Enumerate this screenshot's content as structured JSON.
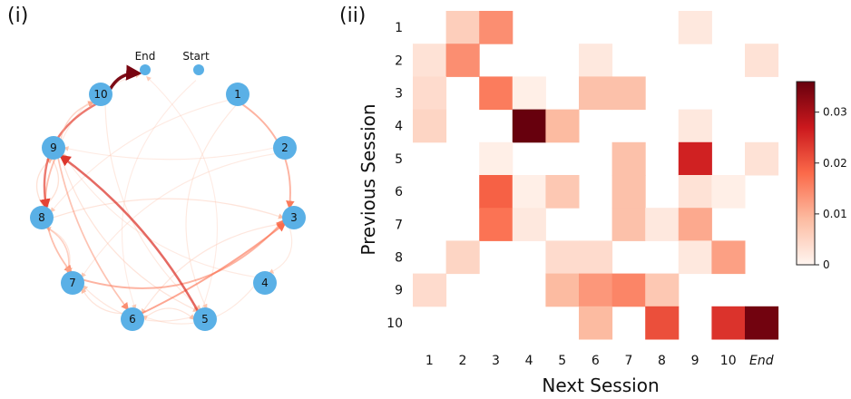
{
  "panels": {
    "left": "(i)",
    "right": "(ii)"
  },
  "graph": {
    "end_label": "End",
    "start_label": "Start",
    "nodes": [
      "1",
      "2",
      "3",
      "4",
      "5",
      "6",
      "7",
      "8",
      "9",
      "10"
    ]
  },
  "chart_data": {
    "type": "heatmap",
    "xlabel": "Next Session",
    "ylabel": "Previous Session",
    "x_categories": [
      "1",
      "2",
      "3",
      "4",
      "5",
      "6",
      "7",
      "8",
      "9",
      "10",
      "End"
    ],
    "y_categories": [
      "1",
      "2",
      "3",
      "4",
      "5",
      "6",
      "7",
      "8",
      "9",
      "10"
    ],
    "colorbar": {
      "min": 0,
      "max": 0.036,
      "ticks": [
        "0",
        "0.01",
        "0.02",
        "0.03"
      ],
      "tick_values": [
        0,
        0.01,
        0.02,
        0.03
      ]
    },
    "values": [
      [
        0,
        0.006,
        0.014,
        0,
        0,
        0,
        0,
        0,
        0.002,
        0,
        0
      ],
      [
        0.003,
        0.014,
        0,
        0,
        0,
        0.002,
        0,
        0,
        0,
        0,
        0.003
      ],
      [
        0.004,
        0,
        0.016,
        0.001,
        0,
        0.008,
        0.008,
        0,
        0,
        0,
        0
      ],
      [
        0.005,
        0,
        0,
        0.036,
        0.009,
        0,
        0,
        0,
        0.002,
        0,
        0
      ],
      [
        0,
        0,
        0.001,
        0,
        0,
        0,
        0.008,
        0,
        0.026,
        0,
        0.003
      ],
      [
        0,
        0,
        0.019,
        0.001,
        0.007,
        0,
        0.008,
        0,
        0.003,
        0.001,
        0
      ],
      [
        0,
        0,
        0.017,
        0.002,
        0,
        0,
        0.008,
        0.002,
        0.011,
        0,
        0
      ],
      [
        0,
        0.005,
        0,
        0,
        0.004,
        0.004,
        0,
        0,
        0.002,
        0.012,
        0
      ],
      [
        0.004,
        0,
        0,
        0,
        0.009,
        0.013,
        0.015,
        0.007,
        0,
        0,
        0
      ],
      [
        0,
        0,
        0,
        0,
        0,
        0.009,
        0,
        0.021,
        0,
        0.024,
        0.035
      ]
    ],
    "end_label_color": "#3b76d1"
  }
}
